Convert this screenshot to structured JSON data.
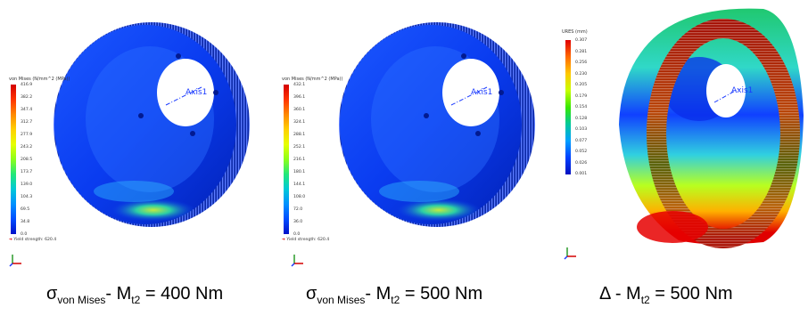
{
  "panels": [
    {
      "legend": {
        "title": "von Mises (N/mm^2 (MPa))",
        "ticks": [
          "416.9",
          "382.2",
          "347.4",
          "312.7",
          "277.9",
          "243.2",
          "208.5",
          "173.7",
          "139.0",
          "104.3",
          "69.5",
          "34.8",
          "0.0"
        ],
        "yield": "Yield strength: 620.4"
      },
      "axis_label": "Axis1",
      "caption": {
        "sym": "σ",
        "sym_sub": "von Mises",
        "sep": "- ",
        "var": "M",
        "var_sub": "t2",
        "value": " = 400 Nm"
      }
    },
    {
      "legend": {
        "title": "von Mises (N/mm^2 (MPa))",
        "ticks": [
          "432.1",
          "396.1",
          "360.1",
          "324.1",
          "288.1",
          "252.1",
          "216.1",
          "180.1",
          "144.1",
          "108.0",
          "72.0",
          "36.0",
          "0.0"
        ],
        "yield": "Yield strength: 620.4"
      },
      "axis_label": "Axis1",
      "caption": {
        "sym": "σ",
        "sym_sub": "von Mises",
        "sep": "- ",
        "var": "M",
        "var_sub": "t2",
        "value": " = 500 Nm"
      }
    },
    {
      "legend": {
        "title": "URES (mm)",
        "ticks": [
          "0.307",
          "0.281",
          "0.256",
          "0.230",
          "0.205",
          "0.179",
          "0.154",
          "0.128",
          "0.103",
          "0.077",
          "0.052",
          "0.026",
          "0.001"
        ]
      },
      "axis_label": "Axis1",
      "caption": {
        "sym": "Δ",
        "sep": " - ",
        "var": "M",
        "var_sub": "t2",
        "value": " = 500 Nm"
      }
    }
  ],
  "colors": {
    "stress_scale": [
      "#d40000",
      "#ff3300",
      "#ff8800",
      "#ffd000",
      "#e6ff00",
      "#8cff1a",
      "#22e87a",
      "#00c8d8",
      "#0090ff",
      "#004cff",
      "#0010c8"
    ],
    "deflection_scale": [
      "#e00000",
      "#ff6a00",
      "#ffc800",
      "#c8ff00",
      "#38e800",
      "#00c89a",
      "#00a0ff",
      "#0040ff",
      "#0010c0"
    ],
    "part_blue": "#0a3cf0",
    "axis_line": "#1a3aff"
  }
}
